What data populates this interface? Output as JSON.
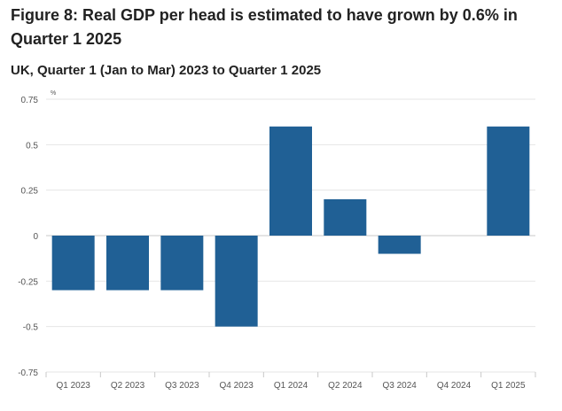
{
  "title": "Figure 8: Real GDP per head is estimated to have grown by 0.6% in Quarter 1 2025",
  "subtitle": "UK, Quarter 1 (Jan to Mar) 2023 to Quarter 1 2025",
  "colors": {
    "bar": "#206095",
    "grid": "#e6e6e6",
    "axis": "#c8c8c8",
    "text": "#222222"
  },
  "chart_data": {
    "type": "bar",
    "title": "Figure 8: Real GDP per head is estimated to have grown by 0.6% in Quarter 1 2025",
    "subtitle": "UK, Quarter 1 (Jan to Mar) 2023 to Quarter 1 2025",
    "ylabel": "%",
    "xlabel": "",
    "categories": [
      "Q1 2023",
      "Q2 2023",
      "Q3 2023",
      "Q4 2023",
      "Q1 2024",
      "Q2 2024",
      "Q3 2024",
      "Q4 2024",
      "Q1 2025"
    ],
    "values": [
      -0.3,
      -0.3,
      -0.3,
      -0.5,
      0.6,
      0.2,
      -0.1,
      0.0,
      0.6
    ],
    "ylim": [
      -0.75,
      0.75
    ],
    "yticks": [
      0.75,
      0.5,
      0.25,
      0,
      -0.25,
      -0.5,
      -0.75
    ],
    "ytick_labels": [
      "0.75",
      "0.5",
      "0.25",
      "0",
      "-0.25",
      "-0.5",
      "-0.75"
    ],
    "grid": true,
    "legend": "none"
  }
}
